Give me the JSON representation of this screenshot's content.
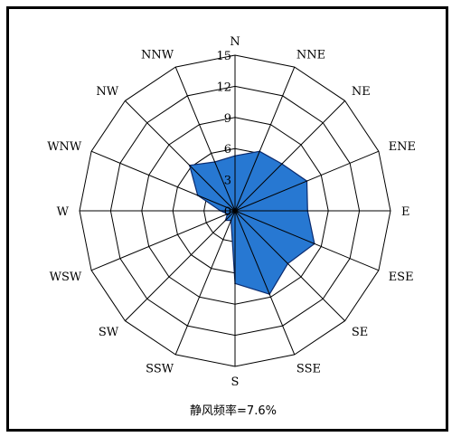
{
  "chart_data": {
    "type": "radar",
    "title": "",
    "directions": [
      "N",
      "NNE",
      "NE",
      "ENE",
      "E",
      "ESE",
      "SE",
      "SSE",
      "S",
      "SSW",
      "SW",
      "WSW",
      "W",
      "WNW",
      "NW",
      "NNW"
    ],
    "rlim": [
      0,
      15
    ],
    "rticks": [
      "0",
      "3",
      "6",
      "9",
      "12",
      "15"
    ],
    "rtick_values": [
      0,
      3,
      6,
      9,
      12,
      15
    ],
    "grid": true,
    "series": [
      {
        "values": [
          5.3,
          6.2,
          6.4,
          7.5,
          7.0,
          8.3,
          7.2,
          8.7,
          7.0,
          1.0,
          1.3,
          0.8,
          1.4,
          3.9,
          6.2,
          5.1
        ]
      }
    ],
    "calm_note": "静风频率=7.6%",
    "colors": {
      "fill": "#2778d2",
      "stroke": "#0a2a6e",
      "grid": "#000000"
    }
  }
}
